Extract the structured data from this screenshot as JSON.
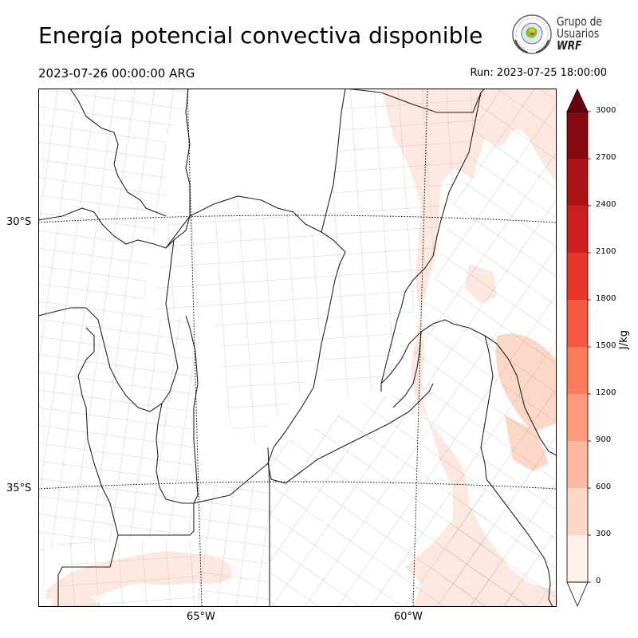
{
  "header": {
    "title": "Energía potencial convectiva disponible",
    "valid_time": "2023-07-26 00:00:00 ARG",
    "run_time": "Run: 2023-07-25 18:00:00"
  },
  "logo": {
    "line1": "Grupo de",
    "line2": "Usuarios",
    "line3": "WRF"
  },
  "map": {
    "lat_labels": [
      "30°S",
      "35°S"
    ],
    "lon_labels": [
      "65°W",
      "60°W"
    ]
  },
  "colorbar": {
    "units": "J/kg",
    "ticks": [
      "0",
      "300",
      "600",
      "900",
      "1200",
      "1500",
      "1800",
      "2100",
      "2400",
      "2700",
      "3000"
    ],
    "colors": [
      "#fff0ea",
      "#fdd6c5",
      "#fcbba1",
      "#fc9a7d",
      "#fb7b5c",
      "#f5573f",
      "#e8362b",
      "#cc1d1f",
      "#ad1318",
      "#860811"
    ],
    "under_color": "#ffffff",
    "over_color": "#67000d",
    "extend": "both"
  },
  "field": {
    "shaded_color": "#fde3d8",
    "darker_color": "#fbd4c1"
  }
}
